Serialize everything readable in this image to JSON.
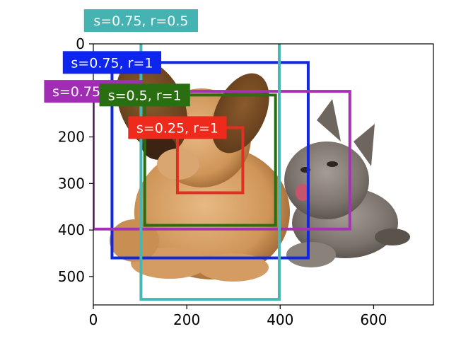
{
  "chart_data": {
    "type": "image-with-bounding-boxes",
    "title": "",
    "xlabel": "",
    "ylabel": "",
    "image_extent": {
      "width": 728,
      "height": 561
    },
    "xlim": [
      0,
      728
    ],
    "ylim": [
      561,
      0
    ],
    "x_ticks": [
      0,
      200,
      400,
      600
    ],
    "y_ticks": [
      0,
      100,
      200,
      300,
      400,
      500
    ],
    "y_tick_labels": [
      "0",
      "100",
      "200",
      "300",
      "400",
      "500"
    ],
    "x_tick_labels": [
      "0",
      "200",
      "400",
      "600"
    ],
    "photo_description_icon": "dog-and-cat-photo",
    "boxes": [
      {
        "label": "s=0.75, r=1",
        "x0": 40,
        "y0": 40,
        "x1": 460,
        "y1": 460,
        "color": "#1127e0",
        "label_bg": "#0e25ee"
      },
      {
        "label": "s=0.5, r=1",
        "x0": 110,
        "y0": 110,
        "x1": 390,
        "y1": 390,
        "color": "#2a6e12",
        "label_bg": "#2a6e12"
      },
      {
        "label": "s=0.25, r=1",
        "x0": 180,
        "y0": 180,
        "x1": 320,
        "y1": 320,
        "color": "#e03022",
        "label_bg": "#ee2a1c"
      },
      {
        "label": "s=0.75, r=2",
        "x0": 0,
        "y0": 102,
        "x1": 549,
        "y1": 398,
        "color": "#a333b2",
        "label_bg": "#a22db5"
      },
      {
        "label": "s=0.75, r=0.5",
        "x0": 102,
        "y0": -50,
        "x1": 398,
        "y1": 549,
        "color": "#48b7b4",
        "label_bg": "#44b3b2"
      }
    ],
    "label_order": [
      "s=0.75, r=0.5",
      "s=0.75, r=1",
      "s=0.75, r=2",
      "s=0.5, r=1",
      "s=0.25, r=1"
    ],
    "grid": false
  }
}
